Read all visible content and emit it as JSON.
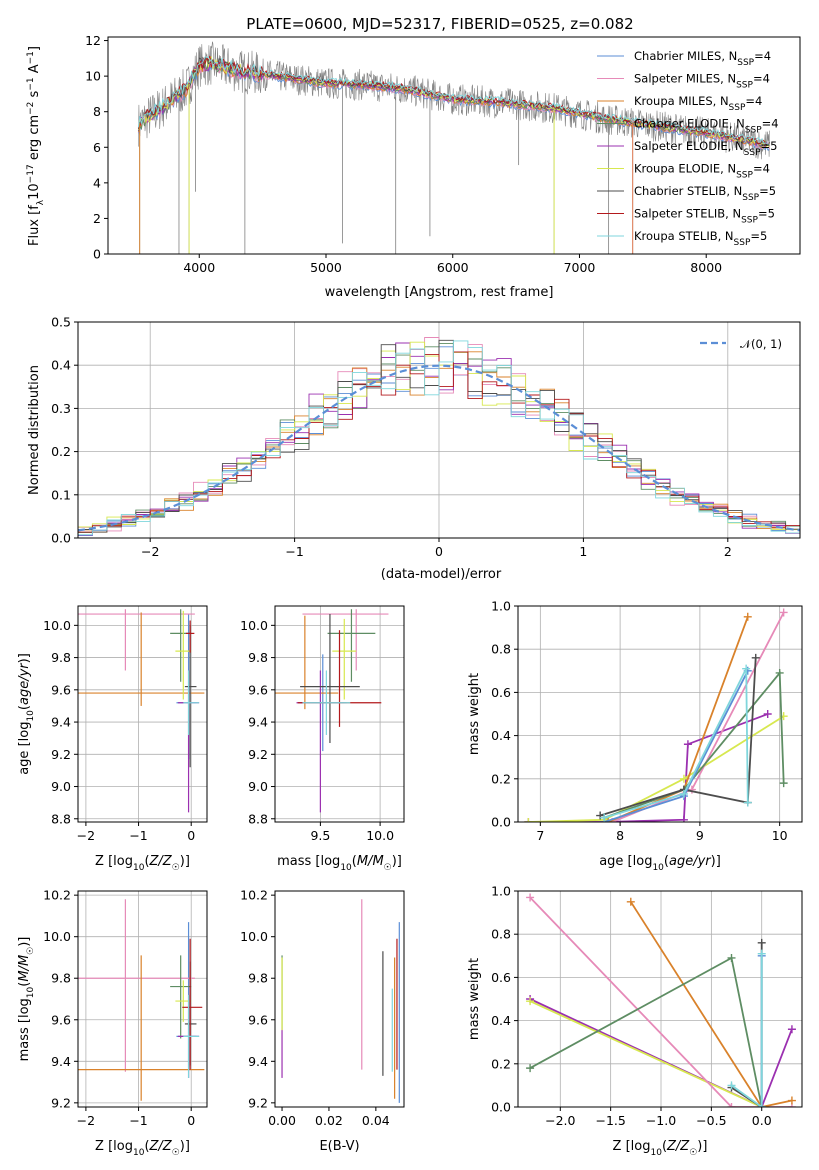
{
  "figure": {
    "title": "PLATE=0600, MJD=52317, FIBERID=0525, z=0.082"
  },
  "series": [
    {
      "key": "cm",
      "name": "Chabrier MILES, N_SSP=4",
      "color": "#5b8ed6"
    },
    {
      "key": "sm",
      "name": "Salpeter MILES, N_SSP=4",
      "color": "#e68ab8"
    },
    {
      "key": "km",
      "name": "Kroupa MILES, N_SSP=4",
      "color": "#d9822b"
    },
    {
      "key": "ce",
      "name": "Chabrier ELODIE, N_SSP=4",
      "color": "#5e8d63"
    },
    {
      "key": "se",
      "name": "Salpeter ELODIE, N_SSP=5",
      "color": "#9b30b0"
    },
    {
      "key": "ke",
      "name": "Kroupa ELODIE, N_SSP=4",
      "color": "#d7e84f"
    },
    {
      "key": "cs",
      "name": "Chabrier STELIB, N_SSP=5",
      "color": "#4d4d4d"
    },
    {
      "key": "ss",
      "name": "Salpeter STELIB, N_SSP=5",
      "color": "#b3191c"
    },
    {
      "key": "ks",
      "name": "Kroupa STELIB, N_SSP=5",
      "color": "#7fd6dc"
    }
  ],
  "chart_data": [
    {
      "id": "spectrum",
      "type": "line",
      "title": "PLATE=0600, MJD=52317, FIBERID=0525, z=0.082",
      "xlabel": "wavelength [Angstrom, rest frame]",
      "ylabel": "Flux [f_λ 10^-17 erg cm^-2 s^-1 A^-1]",
      "xlim": [
        3280,
        8740
      ],
      "ylim": [
        0,
        12.2
      ],
      "xticks": [
        4000,
        5000,
        6000,
        7000,
        8000
      ],
      "yticks": [
        0,
        2,
        4,
        6,
        8,
        10,
        12
      ],
      "grid": false,
      "legend": "top-right",
      "model_continuum": {
        "x": [
          3520,
          3700,
          3900,
          4000,
          4100,
          4300,
          4600,
          5000,
          5300,
          5600,
          6000,
          6400,
          6800,
          7200,
          7600,
          8000,
          8300,
          8500
        ],
        "y": [
          7.3,
          8.2,
          9.3,
          10.6,
          10.7,
          10.3,
          10.0,
          9.6,
          9.5,
          9.3,
          8.7,
          8.5,
          8.2,
          7.6,
          7.2,
          6.8,
          6.4,
          6.1
        ]
      },
      "data_noise_amplitude": 0.9,
      "absorption_dips": [
        {
          "x": 3530,
          "y": 0.0
        },
        {
          "x": 3840,
          "y": 0.0
        },
        {
          "x": 3920,
          "y": 0.0
        },
        {
          "x": 3970,
          "y": 3.5
        },
        {
          "x": 4360,
          "y": 0.0
        },
        {
          "x": 5130,
          "y": 0.6
        },
        {
          "x": 5550,
          "y": 0.0
        },
        {
          "x": 5820,
          "y": 1.0
        },
        {
          "x": 6520,
          "y": 5.0
        },
        {
          "x": 6800,
          "y": 0.0
        },
        {
          "x": 7230,
          "y": 0.0
        },
        {
          "x": 7420,
          "y": 0.0
        }
      ]
    },
    {
      "id": "residuals",
      "type": "histogram",
      "xlabel": "(data-model)/error",
      "ylabel": "Normed distribution",
      "xlim": [
        -2.5,
        2.5
      ],
      "ylim": [
        0,
        0.5
      ],
      "xticks": [
        -2,
        -1,
        0,
        1,
        2
      ],
      "yticks": [
        0.0,
        0.1,
        0.2,
        0.3,
        0.4,
        0.5
      ],
      "grid": true,
      "bin_width": 0.1,
      "reference_curve": {
        "name": "𝒩(0, 1)",
        "mean": 0,
        "sigma": 1,
        "color": "#5b8ed6"
      },
      "legend": "top-right"
    },
    {
      "id": "age_vs_Z",
      "type": "errorbar",
      "xlabel": "Z [log10(Z/Z☉)]",
      "ylabel": "age  [log10(age/yr)]",
      "xlim": [
        -2.15,
        0.3
      ],
      "ylim": [
        8.78,
        10.12
      ],
      "xticks": [
        -2,
        -1,
        0
      ],
      "yticks": [
        8.8,
        9.0,
        9.2,
        9.4,
        9.6,
        9.8,
        10.0
      ],
      "grid": true,
      "points": [
        {
          "s": "cm",
          "x": -0.05,
          "xerr": [
            0.23,
            0.15
          ],
          "y": 9.52,
          "yerr": [
            0.35,
            0.55
          ]
        },
        {
          "s": "sm",
          "x": -1.25,
          "xerr": [
            0.9,
            1.32
          ],
          "y": 10.07,
          "yerr": [
            0.35,
            0.03
          ]
        },
        {
          "s": "km",
          "x": -0.95,
          "xerr": [
            1.2,
            1.2
          ],
          "y": 9.58,
          "yerr": [
            0.08,
            0.5
          ]
        },
        {
          "s": "ce",
          "x": -0.2,
          "xerr": [
            0.2,
            0.2
          ],
          "y": 9.95,
          "yerr": [
            0.3,
            0.15
          ]
        },
        {
          "s": "se",
          "x": -0.05,
          "xerr": [
            0.2,
            0.2
          ],
          "y": 9.52,
          "yerr": [
            0.68,
            0.2
          ]
        },
        {
          "s": "ke",
          "x": -0.15,
          "xerr": [
            0.15,
            0.15
          ],
          "y": 9.84,
          "yerr": [
            0.3,
            0.25
          ]
        },
        {
          "s": "cs",
          "x": -0.02,
          "xerr": [
            0.1,
            0.12
          ],
          "y": 9.62,
          "yerr": [
            0.5,
            0.38
          ]
        },
        {
          "s": "ss",
          "x": -0.02,
          "xerr": [
            0.08,
            0.08
          ],
          "y": 9.95,
          "yerr": [
            0.12,
            0.08
          ]
        },
        {
          "s": "ks",
          "x": -0.05,
          "xerr": [
            0.1,
            0.2
          ],
          "y": 9.52,
          "yerr": [
            0.2,
            0.2
          ]
        }
      ]
    },
    {
      "id": "age_vs_mass",
      "type": "errorbar",
      "xlabel": "mass [log10(M/M☉)]",
      "ylabel": "",
      "xlim": [
        9.12,
        10.2
      ],
      "ylim": [
        8.78,
        10.12
      ],
      "xticks": [
        9.5,
        10.0
      ],
      "yticks": [
        8.8,
        9.0,
        9.2,
        9.4,
        9.6,
        9.8,
        10.0
      ],
      "grid": true,
      "points": [
        {
          "s": "cm",
          "x": 9.52,
          "xerr": [
            0.2,
            0.2
          ],
          "y": 9.52,
          "yerr": [
            0.3,
            0.3
          ]
        },
        {
          "s": "sm",
          "x": 9.8,
          "xerr": [
            0.45,
            0.27
          ],
          "y": 10.07,
          "yerr": [
            0.35,
            0.03
          ]
        },
        {
          "s": "km",
          "x": 9.37,
          "xerr": [
            0.28,
            0.28
          ],
          "y": 9.58,
          "yerr": [
            0.1,
            0.48
          ]
        },
        {
          "s": "ce",
          "x": 9.76,
          "xerr": [
            0.2,
            0.2
          ],
          "y": 9.95,
          "yerr": [
            0.3,
            0.15
          ]
        },
        {
          "s": "se",
          "x": 9.5,
          "xerr": [
            0.2,
            0.2
          ],
          "y": 9.52,
          "yerr": [
            0.68,
            0.2
          ]
        },
        {
          "s": "ke",
          "x": 9.7,
          "xerr": [
            0.1,
            0.1
          ],
          "y": 9.84,
          "yerr": [
            0.3,
            0.2
          ]
        },
        {
          "s": "cs",
          "x": 9.58,
          "xerr": [
            0.25,
            0.25
          ],
          "y": 9.62,
          "yerr": [
            0.35,
            0.45
          ]
        },
        {
          "s": "ss",
          "x": 9.66,
          "xerr": [
            0.35,
            0.35
          ],
          "y": 9.52,
          "yerr": [
            0.15,
            0.45
          ]
        },
        {
          "s": "ks",
          "x": 9.55,
          "xerr": [
            0.2,
            0.2
          ],
          "y": 9.52,
          "yerr": [
            0.2,
            0.2
          ]
        }
      ]
    },
    {
      "id": "weight_vs_age",
      "type": "line",
      "xlabel": "age  [log10(age/yr)]",
      "ylabel": "mass weight",
      "xlim": [
        6.72,
        10.28
      ],
      "ylim": [
        0,
        1
      ],
      "xticks": [
        7,
        8,
        9,
        10
      ],
      "yticks": [
        0.0,
        0.2,
        0.4,
        0.6,
        0.8,
        1.0
      ],
      "grid": true,
      "lines": [
        {
          "s": "se",
          "x": [
            6.85,
            7.8,
            8.8,
            8.85,
            9.85
          ],
          "y": [
            0.0,
            0.0,
            0.01,
            0.36,
            0.5
          ]
        },
        {
          "s": "ke",
          "x": [
            6.85,
            7.8,
            8.8,
            10.05
          ],
          "y": [
            0.0,
            0.01,
            0.2,
            0.49
          ]
        },
        {
          "s": "sm",
          "x": [
            7.9,
            8.9,
            10.05
          ],
          "y": [
            0.0,
            0.15,
            0.97
          ]
        },
        {
          "s": "km",
          "x": [
            7.85,
            8.8,
            9.6
          ],
          "y": [
            0.0,
            0.15,
            0.95
          ]
        },
        {
          "s": "ce",
          "x": [
            7.8,
            8.8,
            10.0,
            10.05
          ],
          "y": [
            0.02,
            0.15,
            0.69,
            0.18
          ]
        },
        {
          "s": "cs",
          "x": [
            7.75,
            8.8,
            9.6,
            9.7
          ],
          "y": [
            0.03,
            0.15,
            0.09,
            0.76
          ]
        },
        {
          "s": "cm",
          "x": [
            7.8,
            8.8,
            9.6
          ],
          "y": [
            0.0,
            0.12,
            0.7
          ]
        },
        {
          "s": "ks",
          "x": [
            7.8,
            8.8,
            9.58,
            9.6
          ],
          "y": [
            0.02,
            0.13,
            0.71,
            0.09
          ]
        }
      ]
    },
    {
      "id": "mass_vs_Z",
      "type": "errorbar",
      "xlabel": "Z [log10(Z/Z☉)]",
      "ylabel": "mass [log10(M/M☉)]",
      "xlim": [
        -2.15,
        0.3
      ],
      "ylim": [
        9.18,
        10.22
      ],
      "xticks": [
        -2,
        -1,
        0
      ],
      "yticks": [
        9.2,
        9.4,
        9.6,
        9.8,
        10.0,
        10.2
      ],
      "grid": true,
      "points": [
        {
          "s": "cm",
          "x": -0.05,
          "xerr": [
            0.23,
            0.15
          ],
          "y": 9.52,
          "yerr": [
            0.15,
            0.55
          ]
        },
        {
          "s": "sm",
          "x": -1.25,
          "xerr": [
            0.9,
            1.32
          ],
          "y": 9.8,
          "yerr": [
            0.45,
            0.38
          ]
        },
        {
          "s": "km",
          "x": -0.95,
          "xerr": [
            1.2,
            1.2
          ],
          "y": 9.36,
          "yerr": [
            0.15,
            0.55
          ]
        },
        {
          "s": "ce",
          "x": -0.2,
          "xerr": [
            0.2,
            0.2
          ],
          "y": 9.76,
          "yerr": [
            0.25,
            0.15
          ]
        },
        {
          "s": "se",
          "x": -0.05,
          "xerr": [
            0.2,
            0.2
          ],
          "y": 9.52,
          "yerr": [
            0.2,
            0.2
          ]
        },
        {
          "s": "ke",
          "x": -0.15,
          "xerr": [
            0.15,
            0.15
          ],
          "y": 9.69,
          "yerr": [
            0.1,
            0.1
          ]
        },
        {
          "s": "cs",
          "x": -0.02,
          "xerr": [
            0.1,
            0.12
          ],
          "y": 9.58,
          "yerr": [
            0.2,
            0.3
          ]
        },
        {
          "s": "ss",
          "x": -0.02,
          "xerr": [
            0.15,
            0.23
          ],
          "y": 9.66,
          "yerr": [
            0.3,
            0.33
          ]
        },
        {
          "s": "ks",
          "x": -0.05,
          "xerr": [
            0.1,
            0.2
          ],
          "y": 9.52,
          "yerr": [
            0.2,
            0.2
          ]
        }
      ]
    },
    {
      "id": "mass_vs_EBV",
      "type": "errorbar",
      "xlabel": "E(B-V)",
      "ylabel": "",
      "xlim": [
        -0.003,
        0.052
      ],
      "ylim": [
        9.18,
        10.22
      ],
      "xticks": [
        0.0,
        0.02,
        0.04
      ],
      "yticks": [
        9.2,
        9.4,
        9.6,
        9.8,
        10.0,
        10.2
      ],
      "grid": false,
      "points": [
        {
          "s": "cm",
          "x": 0.05,
          "y": 9.5,
          "yerr": [
            0.3,
            0.57
          ]
        },
        {
          "s": "sm",
          "x": 0.034,
          "y": 9.76,
          "yerr": [
            0.4,
            0.42
          ]
        },
        {
          "s": "km",
          "x": 0.048,
          "y": 9.6,
          "yerr": [
            0.38,
            0.3
          ]
        },
        {
          "s": "ce",
          "x": 0.0,
          "y": 9.76,
          "yerr": [
            0.2,
            0.15
          ]
        },
        {
          "s": "se",
          "x": 0.0,
          "y": 9.44,
          "yerr": [
            0.12,
            0.12
          ]
        },
        {
          "s": "ke",
          "x": 0.0,
          "y": 9.65,
          "yerr": [
            0.1,
            0.25
          ]
        },
        {
          "s": "cs",
          "x": 0.043,
          "y": 9.63,
          "yerr": [
            0.3,
            0.3
          ]
        },
        {
          "s": "ss",
          "x": 0.049,
          "y": 9.66,
          "yerr": [
            0.3,
            0.33
          ]
        },
        {
          "s": "ks",
          "x": 0.047,
          "y": 9.55,
          "yerr": [
            0.2,
            0.2
          ]
        }
      ]
    },
    {
      "id": "weight_vs_Z",
      "type": "line",
      "xlabel": "Z [log10(Z/Z☉)]",
      "ylabel": "mass weight",
      "xlim": [
        -2.42,
        0.4
      ],
      "ylim": [
        0,
        1
      ],
      "xticks": [
        -2.0,
        -1.5,
        -1.0,
        -0.5,
        0.0
      ],
      "yticks": [
        0.0,
        0.2,
        0.4,
        0.6,
        0.8,
        1.0
      ],
      "grid": true,
      "lines": [
        {
          "s": "se",
          "x": [
            -2.3,
            0.0,
            0.3
          ],
          "y": [
            0.5,
            0.0,
            0.36
          ]
        },
        {
          "s": "ke",
          "x": [
            -2.3,
            0.0
          ],
          "y": [
            0.49,
            0.0
          ]
        },
        {
          "s": "sm",
          "x": [
            -2.3,
            -0.3,
            0.3
          ],
          "y": [
            0.97,
            0.0,
            0.0
          ]
        },
        {
          "s": "km",
          "x": [
            -1.3,
            0.0,
            0.3
          ],
          "y": [
            0.95,
            0.0,
            0.03
          ]
        },
        {
          "s": "ce",
          "x": [
            -2.3,
            -0.3,
            0.0
          ],
          "y": [
            0.18,
            0.69,
            0.0
          ]
        },
        {
          "s": "cs",
          "x": [
            -0.3,
            0.0,
            0.0
          ],
          "y": [
            0.09,
            0.0,
            0.76
          ]
        },
        {
          "s": "cm",
          "x": [
            0.0,
            0.0
          ],
          "y": [
            0.0,
            0.7
          ]
        },
        {
          "s": "ks",
          "x": [
            -0.3,
            0.0,
            0.0
          ],
          "y": [
            0.1,
            0.0,
            0.71
          ]
        }
      ]
    }
  ]
}
